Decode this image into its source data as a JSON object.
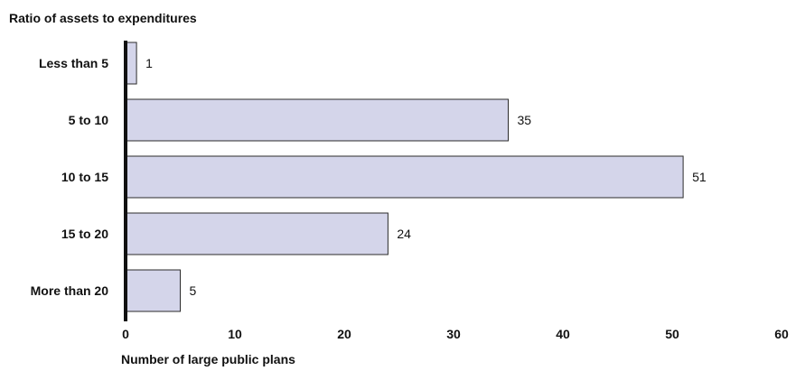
{
  "chart_data": {
    "type": "bar",
    "orientation": "horizontal",
    "title": "Ratio of assets to expenditures",
    "xlabel": "Number of large public plans",
    "ylabel": "",
    "categories": [
      "Less than 5",
      "5 to 10",
      "10 to 15",
      "15 to 20",
      "More than 20"
    ],
    "values": [
      1,
      35,
      51,
      24,
      5
    ],
    "xlim": [
      0,
      60
    ],
    "xticks": [
      0,
      10,
      20,
      30,
      40,
      50,
      60
    ],
    "grid": false,
    "legend": "none",
    "data_labels": true,
    "bar_fill": "#d4d5ea",
    "bar_stroke": "#2b2b2b",
    "axis_color": "#111111"
  }
}
